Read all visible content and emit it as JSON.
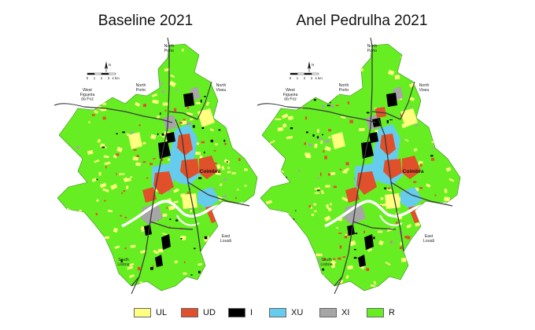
{
  "maps": [
    {
      "title": "Baseline 2021",
      "labels": {
        "north_porto_top": [
          "North",
          "Porto"
        ],
        "north_porto_left": [
          "North",
          "Porto"
        ],
        "north_viseu": [
          "North",
          "Viseu"
        ],
        "west_figueira": [
          "West",
          "Figueira",
          "da Foz"
        ],
        "city": "Coimbra",
        "east_lousa": [
          "East",
          "Lousã"
        ],
        "south_lisboa": [
          "South",
          "Lisboa"
        ]
      },
      "scale_ticks": [
        "0",
        "1",
        "2",
        "3",
        "4 km"
      ],
      "north_arrow": "N"
    },
    {
      "title": "Anel Pedrulha 2021",
      "labels": {
        "north_porto_top": [
          "North",
          "Porto"
        ],
        "north_porto_left": [
          "North",
          "Porto"
        ],
        "north_viseu": [
          "North",
          "Viseu"
        ],
        "west_figueira": [
          "West",
          "Figueira",
          "da Foz"
        ],
        "city": "Coimbra",
        "east_lousa": [
          "East",
          "Lousã"
        ],
        "south_lisboa": [
          "South",
          "Lisboa"
        ]
      },
      "scale_ticks": [
        "0",
        "1",
        "2",
        "3",
        "4 km"
      ],
      "north_arrow": "N"
    }
  ],
  "legend": [
    {
      "code": "UL",
      "color": "#ffff80"
    },
    {
      "code": "UD",
      "color": "#e0502a"
    },
    {
      "code": "I",
      "color": "#000000"
    },
    {
      "code": "XU",
      "color": "#66ccee"
    },
    {
      "code": "XI",
      "color": "#a6a6a6"
    },
    {
      "code": "R",
      "color": "#66ee22"
    }
  ]
}
